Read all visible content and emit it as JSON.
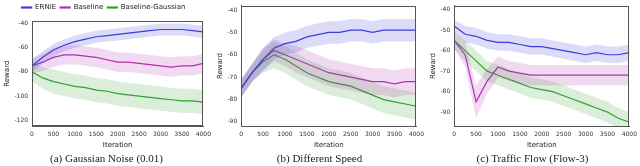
{
  "chart_data": [
    {
      "type": "line",
      "caption": "(a) Gaussian Noise (0.01)",
      "x_label": "Iteration",
      "y_label": "Reward",
      "x": [
        0,
        250,
        500,
        750,
        1000,
        1250,
        1500,
        1750,
        2000,
        2250,
        2500,
        2750,
        3000,
        3250,
        3500,
        3750,
        4000
      ],
      "xlim": [
        0,
        4000
      ],
      "xticks": [
        0,
        500,
        1000,
        1500,
        2000,
        2500,
        3000,
        3500,
        4000
      ],
      "ylim": [
        -125,
        -38
      ],
      "yticks": [
        -120,
        -100,
        -80,
        -60,
        -40
      ],
      "grid": false,
      "legend": "top",
      "series": [
        {
          "name": "ERNIE",
          "color": "#3c3ce0",
          "values": [
            -75,
            -68,
            -62,
            -58,
            -55,
            -53,
            -51,
            -50,
            -49,
            -48,
            -47,
            -46,
            -45,
            -45,
            -45,
            -46,
            -47
          ],
          "error": [
            5,
            5,
            5,
            5,
            5,
            5,
            5,
            5,
            5,
            5,
            5,
            5,
            5,
            5,
            5,
            5,
            5
          ]
        },
        {
          "name": "Baseline",
          "color": "#b030b0",
          "values": [
            -75,
            -72,
            -68,
            -66,
            -66,
            -67,
            -68,
            -70,
            -72,
            -72,
            -73,
            -74,
            -75,
            -76,
            -75,
            -75,
            -73
          ],
          "error": [
            6,
            7,
            8,
            8,
            8,
            8,
            8,
            8,
            8,
            8,
            8,
            8,
            8,
            8,
            8,
            8,
            8
          ]
        },
        {
          "name": "Baseline-Gaussian",
          "color": "#30a030",
          "values": [
            -80,
            -85,
            -88,
            -90,
            -92,
            -93,
            -95,
            -96,
            -98,
            -99,
            -100,
            -101,
            -102,
            -103,
            -104,
            -104,
            -105
          ],
          "error": [
            8,
            9,
            10,
            10,
            10,
            10,
            10,
            10,
            10,
            10,
            10,
            10,
            10,
            10,
            10,
            10,
            10
          ]
        }
      ]
    },
    {
      "type": "line",
      "caption": "(b) Different Speed",
      "x_label": "Iteration",
      "y_label": "Reward",
      "x": [
        0,
        250,
        500,
        750,
        1000,
        1250,
        1500,
        1750,
        2000,
        2250,
        2500,
        2750,
        3000,
        3250,
        3500,
        3750,
        4000
      ],
      "xlim": [
        0,
        4000
      ],
      "xticks": [
        0,
        500,
        1000,
        1500,
        2000,
        2500,
        3000,
        3500,
        4000
      ],
      "ylim": [
        -92,
        -38
      ],
      "yticks": [
        -90,
        -80,
        -70,
        -60,
        -50,
        -40
      ],
      "grid": false,
      "series": [
        {
          "name": "ERNIE",
          "color": "#3c3ce0",
          "values": [
            -75,
            -68,
            -62,
            -57,
            -55,
            -54,
            -52,
            -51,
            -50,
            -50,
            -49,
            -49,
            -50,
            -49,
            -49,
            -49,
            -49
          ],
          "error": [
            4,
            4,
            5,
            5,
            5,
            5,
            5,
            5,
            5,
            5,
            5,
            5,
            5,
            5,
            5,
            5,
            5
          ]
        },
        {
          "name": "Baseline",
          "color": "#b030b0",
          "values": [
            -75,
            -68,
            -62,
            -58,
            -60,
            -62,
            -64,
            -66,
            -68,
            -69,
            -70,
            -71,
            -72,
            -72,
            -73,
            -72,
            -72
          ],
          "error": [
            4,
            4,
            5,
            5,
            5,
            6,
            6,
            6,
            6,
            6,
            6,
            6,
            6,
            6,
            6,
            6,
            6
          ]
        },
        {
          "name": "Baseline-Gaussian",
          "color": "#30a030",
          "values": [
            -75,
            -68,
            -63,
            -60,
            -62,
            -65,
            -68,
            -70,
            -72,
            -73,
            -74,
            -76,
            -78,
            -80,
            -81,
            -82,
            -83
          ],
          "error": [
            4,
            4,
            5,
            6,
            6,
            6,
            6,
            6,
            6,
            6,
            6,
            6,
            6,
            6,
            6,
            6,
            6
          ]
        }
      ]
    },
    {
      "type": "line",
      "caption": "(c) Traffic Flow (Flow-3)",
      "x_label": "Iteration",
      "y_label": "Reward",
      "x": [
        0,
        250,
        500,
        750,
        1000,
        1250,
        1500,
        1750,
        2000,
        2250,
        2500,
        2750,
        3000,
        3250,
        3500,
        3750,
        4000
      ],
      "xlim": [
        0,
        4000
      ],
      "xticks": [
        0,
        500,
        1000,
        1500,
        2000,
        2500,
        3000,
        3500,
        4000
      ],
      "ylim": [
        -97,
        -38
      ],
      "yticks": [
        -90,
        -80,
        -70,
        -60,
        -50,
        -40
      ],
      "grid": false,
      "series": [
        {
          "name": "ERNIE",
          "color": "#3c3ce0",
          "values": [
            -48,
            -52,
            -53,
            -55,
            -56,
            -56,
            -57,
            -58,
            -58,
            -59,
            -60,
            -61,
            -62,
            -61,
            -62,
            -62,
            -61
          ],
          "error": [
            3,
            4,
            4,
            4,
            4,
            4,
            4,
            4,
            4,
            4,
            4,
            4,
            4,
            4,
            4,
            4,
            4
          ]
        },
        {
          "name": "Baseline",
          "color": "#b030b0",
          "values": [
            -55,
            -62,
            -85,
            -75,
            -68,
            -70,
            -71,
            -72,
            -72,
            -72,
            -72,
            -72,
            -72,
            -72,
            -72,
            -72,
            -72
          ],
          "error": [
            4,
            6,
            8,
            6,
            5,
            5,
            5,
            5,
            5,
            5,
            5,
            5,
            5,
            5,
            5,
            5,
            5
          ]
        },
        {
          "name": "Baseline-Gaussian",
          "color": "#30a030",
          "values": [
            -55,
            -60,
            -65,
            -70,
            -72,
            -74,
            -76,
            -78,
            -79,
            -80,
            -82,
            -84,
            -86,
            -88,
            -90,
            -93,
            -95
          ],
          "error": [
            4,
            5,
            5,
            5,
            5,
            5,
            5,
            5,
            5,
            5,
            5,
            5,
            5,
            5,
            5,
            5,
            5
          ]
        }
      ]
    }
  ]
}
